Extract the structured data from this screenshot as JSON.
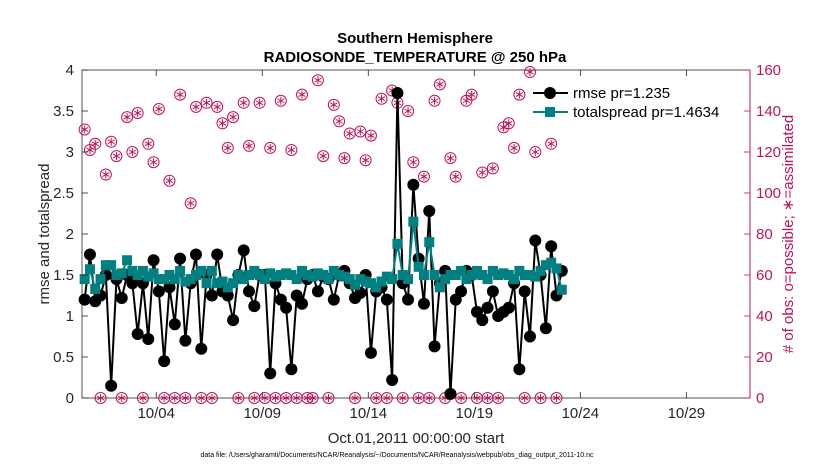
{
  "chart_data": {
    "type": "line",
    "title": "Southern Hemisphere",
    "subtitle": "RADIOSONDE_TEMPERATURE @ 250 hPa",
    "xlabel": "Oct.01,2011 00:00:00 start",
    "ylabel": "rmse and totalspread",
    "ylabel_right": "# of obs: o=possible; ∗=assimilated",
    "footnote": "data file: /Users/gharamti/Documents/NCAR/Reanalysis/~/Documents/NCAR/Reanalysis/webpub/obs_diag_output_2011-10.nc",
    "xlim": [
      0.5,
      32
    ],
    "ylim": [
      0,
      4
    ],
    "ylim_right": [
      0,
      160
    ],
    "x_ticks": [
      4,
      9,
      14,
      19,
      24,
      29
    ],
    "x_tick_labels": [
      "10/04",
      "10/09",
      "10/14",
      "10/19",
      "10/24",
      "10/29"
    ],
    "y_ticks": [
      0,
      0.5,
      1,
      1.5,
      2,
      2.5,
      3,
      3.5,
      4
    ],
    "y_tick_labels": [
      "0",
      "0.5",
      "1",
      "1.5",
      "2",
      "2.5",
      "3",
      "3.5",
      "4"
    ],
    "y_ticks_right": [
      0,
      20,
      40,
      60,
      80,
      100,
      120,
      140,
      160
    ],
    "y_tick_labels_right": [
      "0",
      "20",
      "40",
      "60",
      "80",
      "100",
      "120",
      "140",
      "160"
    ],
    "legend": [
      "rmse pr=1.235",
      "totalspread pr=1.4634"
    ],
    "legend_position": "top-right",
    "colors": {
      "rmse": "#000000",
      "totalspread": "#008080",
      "obs": "#c0135a",
      "axis_right": "#c0135a"
    },
    "x_step_days": 0.25,
    "x_start_day": 0.625,
    "series": [
      {
        "name": "rmse",
        "values": [
          1.2,
          1.75,
          1.18,
          1.25,
          1.5,
          0.15,
          1.45,
          1.22,
          1.5,
          1.4,
          0.78,
          1.4,
          0.72,
          1.68,
          1.3,
          0.45,
          1.35,
          0.9,
          1.7,
          0.7,
          1.4,
          1.75,
          0.6,
          1.5,
          1.25,
          1.75,
          1.3,
          1.25,
          0.95,
          1.5,
          1.8,
          1.3,
          1.12,
          1.5,
          1.5,
          0.3,
          1.4,
          1.2,
          1.1,
          0.35,
          1.25,
          1.15,
          1.45,
          1.5,
          1.3,
          1.48,
          1.45,
          1.2,
          1.5,
          1.55,
          1.4,
          1.22,
          1.28,
          1.5,
          0.55,
          1.3,
          1.35,
          1.2,
          0.22,
          3.72,
          1.4,
          1.2,
          2.6,
          1.7,
          1.15,
          2.28,
          0.63,
          1.4,
          1.55,
          0.05,
          1.2,
          1.3,
          1.55,
          1.5,
          1.05,
          0.95,
          1.1,
          1.3,
          1.0,
          1.05,
          1.1,
          1.4,
          0.35,
          1.3,
          0.75,
          1.92,
          1.5,
          0.85,
          1.85,
          1.25,
          1.55
        ]
      },
      {
        "name": "totalspread",
        "values": [
          1.45,
          1.57,
          1.33,
          1.45,
          1.62,
          1.62,
          1.5,
          1.52,
          1.68,
          1.55,
          1.5,
          1.55,
          1.48,
          1.52,
          1.45,
          1.45,
          1.5,
          1.45,
          1.55,
          1.42,
          1.45,
          1.5,
          1.55,
          1.4,
          1.55,
          1.4,
          1.42,
          1.35,
          1.4,
          1.5,
          1.45,
          1.5,
          1.55,
          1.5,
          1.45,
          1.52,
          1.48,
          1.5,
          1.52,
          1.5,
          1.45,
          1.55,
          1.5,
          1.48,
          1.52,
          1.5,
          1.45,
          1.55,
          1.5,
          1.48,
          1.45,
          1.38,
          1.45,
          1.42,
          1.4,
          1.35,
          1.42,
          1.48,
          1.45,
          1.88,
          1.5,
          1.45,
          2.15,
          1.6,
          1.5,
          1.9,
          1.5,
          1.35,
          1.45,
          1.5,
          1.5,
          1.55,
          1.45,
          1.5,
          1.55,
          1.5,
          1.45,
          1.55,
          1.5,
          1.52,
          1.5,
          1.45,
          1.55,
          1.5,
          1.5,
          1.48,
          1.55,
          1.62,
          1.65,
          1.58,
          1.32
        ]
      },
      {
        "name": "obs_possible",
        "axis": "right",
        "values": [
          131,
          121,
          124,
          0,
          109,
          125,
          118,
          0,
          137,
          120,
          139,
          0,
          124,
          115,
          141,
          0,
          106,
          0,
          148,
          0,
          95,
          142,
          0,
          144,
          0,
          142,
          134,
          122,
          137,
          0,
          144,
          123,
          0,
          144,
          0,
          122,
          0,
          145,
          0,
          121,
          0,
          148,
          0,
          0,
          155,
          118,
          0,
          143,
          135,
          117,
          129,
          0,
          130,
          116,
          128,
          0,
          146,
          0,
          150,
          144,
          0,
          140,
          115,
          0,
          108,
          0,
          145,
          153,
          0,
          117,
          108,
          0,
          145,
          148,
          0,
          110,
          0,
          112,
          0,
          132,
          134,
          122,
          148,
          0,
          159,
          120,
          0,
          149,
          124,
          0,
          148
        ]
      },
      {
        "name": "obs_assimilated",
        "axis": "right",
        "values": [
          131,
          121,
          124,
          0,
          109,
          125,
          118,
          0,
          137,
          120,
          139,
          0,
          124,
          115,
          141,
          0,
          106,
          0,
          148,
          0,
          95,
          142,
          0,
          144,
          0,
          142,
          134,
          122,
          137,
          0,
          144,
          123,
          0,
          144,
          0,
          122,
          0,
          145,
          0,
          121,
          0,
          148,
          0,
          0,
          155,
          118,
          0,
          143,
          135,
          117,
          129,
          0,
          130,
          116,
          128,
          0,
          146,
          0,
          150,
          144,
          0,
          140,
          115,
          0,
          108,
          0,
          145,
          153,
          0,
          117,
          108,
          0,
          145,
          148,
          0,
          110,
          0,
          112,
          0,
          132,
          134,
          122,
          148,
          0,
          159,
          120,
          0,
          149,
          124,
          0,
          148
        ]
      }
    ]
  }
}
